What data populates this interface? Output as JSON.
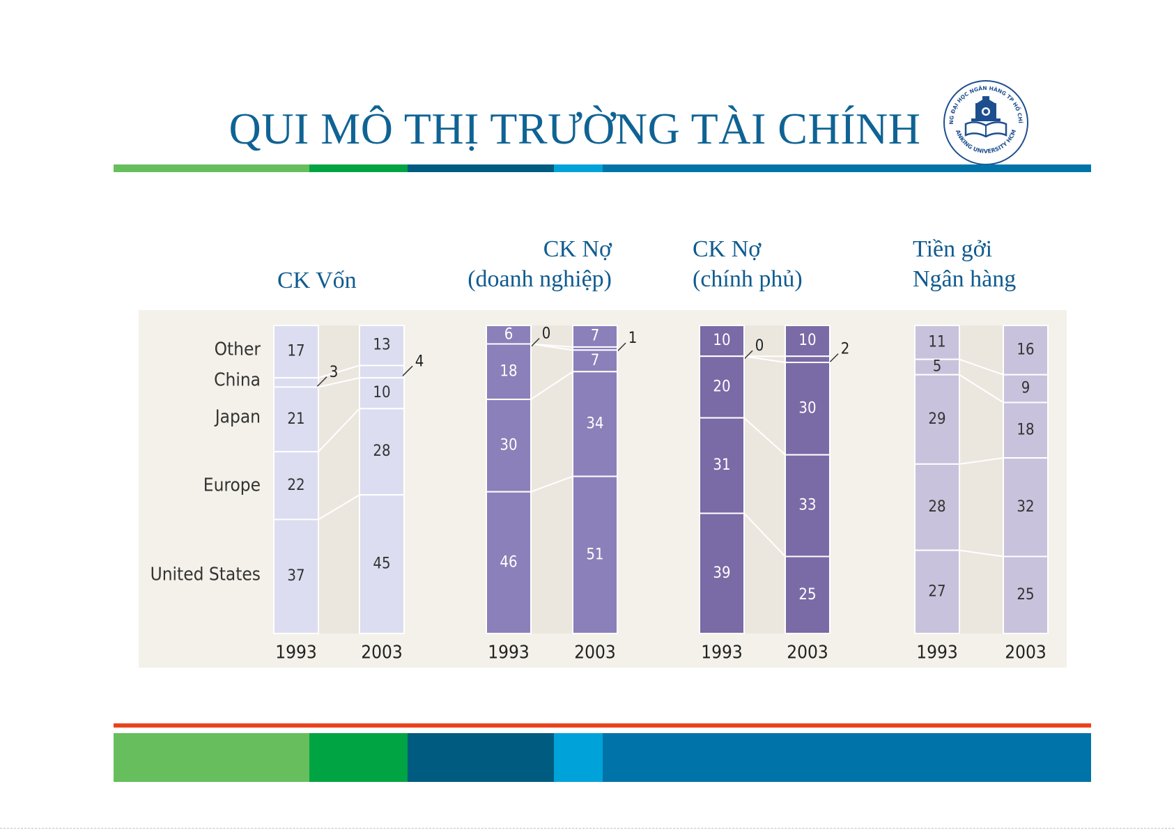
{
  "slide": {
    "title": "QUI MÔ THỊ TRƯỜNG TÀI CHÍNH"
  },
  "logo": {
    "text_top": "TRƯỜNG ĐẠI HỌC NGÂN HÀNG TP HỒ CHÍ MINH",
    "text_bottom": "BANKING UNIVERSITY HCMC",
    "icon": "university-building-book-icon"
  },
  "colors": {
    "title": "#0f6394",
    "heading": "#0f5b8f",
    "panel_bg": "#f3f1e9",
    "stripe": [
      "#66bf5c",
      "#00a443",
      "#005b80",
      "#00a3d9",
      "#0074a8"
    ],
    "accent_line": "#e8431c"
  },
  "panels": [
    {
      "heading_lines": [
        "CK Vốn"
      ]
    },
    {
      "heading_lines": [
        "CK Nợ",
        "(doanh nghiệp)"
      ]
    },
    {
      "heading_lines": [
        "CK Nợ",
        "(chính phủ)"
      ]
    },
    {
      "heading_lines": [
        "Tiền gởi",
        "Ngân hàng"
      ]
    }
  ],
  "chart_data": {
    "type": "bar",
    "stacked": true,
    "unit": "percent",
    "categories": [
      "Other",
      "China",
      "Japan",
      "Europe",
      "United States"
    ],
    "x_labels": [
      "1993",
      "2003"
    ],
    "charts": [
      {
        "panel": "CK Vốn",
        "fill": "#dcddf0",
        "series": [
          {
            "year": "1993",
            "values": {
              "Other": 17,
              "China": 3,
              "Japan": 21,
              "Europe": 22,
              "United States": 37
            }
          },
          {
            "year": "2003",
            "values": {
              "Other": 13,
              "China": 4,
              "Japan": 10,
              "Europe": 28,
              "United States": 45
            }
          }
        ]
      },
      {
        "panel": "CK Nợ (doanh nghiệp)",
        "fill": "#8b80b9",
        "series": [
          {
            "year": "1993",
            "values": {
              "Other": 6,
              "China": 0,
              "Japan": 18,
              "Europe": 30,
              "United States": 46
            }
          },
          {
            "year": "2003",
            "values": {
              "Other": 7,
              "China": 1,
              "Japan": 7,
              "Europe": 34,
              "United States": 51
            }
          }
        ]
      },
      {
        "panel": "CK Nợ (chính phủ)",
        "fill": "#7a6aa6",
        "series": [
          {
            "year": "1993",
            "values": {
              "Other": 10,
              "China": 0,
              "Japan": 20,
              "Europe": 31,
              "United States": 39
            }
          },
          {
            "year": "2003",
            "values": {
              "Other": 10,
              "China": 2,
              "Japan": 30,
              "Europe": 33,
              "United States": 25
            }
          }
        ]
      },
      {
        "panel": "Tiền gởi Ngân hàng",
        "fill": "#c8c2dc",
        "series": [
          {
            "year": "1993",
            "values": {
              "Other": 11,
              "China": 5,
              "Japan": 29,
              "Europe": 28,
              "United States": 27
            }
          },
          {
            "year": "2003",
            "values": {
              "Other": 16,
              "China": 9,
              "Japan": 18,
              "Europe": 32,
              "United States": 25
            }
          }
        ]
      }
    ]
  }
}
